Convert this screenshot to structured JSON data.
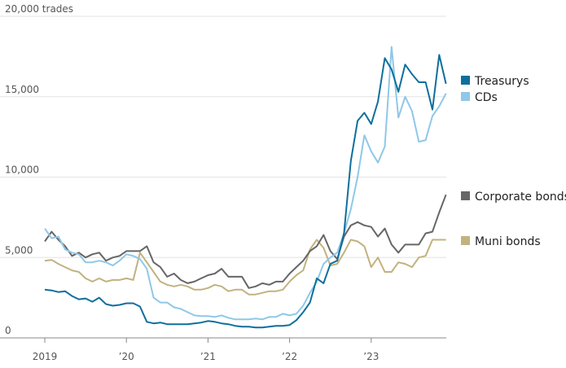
{
  "chart_data": {
    "type": "line",
    "x": [
      "2019-01",
      "2019-02",
      "2019-03",
      "2019-04",
      "2019-05",
      "2019-06",
      "2019-07",
      "2019-08",
      "2019-09",
      "2019-10",
      "2019-11",
      "2019-12",
      "2020-01",
      "2020-02",
      "2020-03",
      "2020-04",
      "2020-05",
      "2020-06",
      "2020-07",
      "2020-08",
      "2020-09",
      "2020-10",
      "2020-11",
      "2020-12",
      "2021-01",
      "2021-02",
      "2021-03",
      "2021-04",
      "2021-05",
      "2021-06",
      "2021-07",
      "2021-08",
      "2021-09",
      "2021-10",
      "2021-11",
      "2021-12",
      "2022-01",
      "2022-02",
      "2022-03",
      "2022-04",
      "2022-05",
      "2022-06",
      "2022-07",
      "2022-08",
      "2022-09",
      "2022-10",
      "2022-11",
      "2022-12",
      "2023-01",
      "2023-02",
      "2023-03",
      "2023-04",
      "2023-05",
      "2023-06",
      "2023-07",
      "2023-08",
      "2023-09",
      "2023-10",
      "2023-11",
      "2023-12"
    ],
    "xticks": [
      {
        "value": "2019-01",
        "label": "2019"
      },
      {
        "value": "2020-01",
        "label": "’20"
      },
      {
        "value": "2021-01",
        "label": "’21"
      },
      {
        "value": "2022-01",
        "label": "’22"
      },
      {
        "value": "2023-01",
        "label": "’23"
      }
    ],
    "ylim": [
      0,
      20000
    ],
    "yticks": [
      0,
      {
        "value": 5000,
        "label": "5,000"
      },
      {
        "value": 10000,
        "label": "10,000"
      },
      {
        "value": 15000,
        "label": "15,000"
      },
      {
        "value": 20000,
        "label": "20,000 trades"
      }
    ],
    "grid": true,
    "legend": "right",
    "series": [
      {
        "name": "Treasurys",
        "color": "#0e6f9c",
        "values": [
          3000,
          2950,
          2850,
          2900,
          2600,
          2400,
          2450,
          2250,
          2500,
          2100,
          2000,
          2050,
          2150,
          2150,
          1950,
          1000,
          900,
          950,
          850,
          850,
          850,
          850,
          900,
          950,
          1050,
          1000,
          900,
          850,
          750,
          700,
          700,
          650,
          650,
          700,
          750,
          750,
          800,
          1100,
          1600,
          2200,
          3700,
          3400,
          4600,
          4800,
          6500,
          11000,
          13500,
          14000,
          13300,
          14700,
          17400,
          16700,
          15300,
          17000,
          16400,
          15900,
          15900,
          14200,
          17600,
          15800
        ]
      },
      {
        "name": "CDs",
        "color": "#8fc8e8",
        "values": [
          6800,
          6200,
          6300,
          5500,
          5300,
          5200,
          4700,
          4700,
          4800,
          4700,
          4500,
          4800,
          5200,
          5100,
          4900,
          4300,
          2500,
          2200,
          2200,
          1900,
          1800,
          1600,
          1400,
          1350,
          1350,
          1300,
          1400,
          1250,
          1150,
          1150,
          1150,
          1200,
          1150,
          1300,
          1300,
          1500,
          1400,
          1500,
          2000,
          2800,
          3500,
          4600,
          5000,
          5300,
          6500,
          8000,
          10000,
          12600,
          11600,
          10900,
          11900,
          18100,
          13700,
          15000,
          14100,
          12200,
          12300,
          13800,
          14400,
          15200
        ]
      },
      {
        "name": "Corporate bonds",
        "color": "#666666",
        "values": [
          6000,
          6600,
          6100,
          5700,
          5100,
          5300,
          5000,
          5200,
          5300,
          4800,
          5000,
          5100,
          5400,
          5400,
          5400,
          5700,
          4700,
          4400,
          3800,
          4000,
          3600,
          3400,
          3500,
          3700,
          3900,
          4000,
          4300,
          3800,
          3800,
          3800,
          3100,
          3200,
          3400,
          3300,
          3500,
          3500,
          4000,
          4400,
          4800,
          5400,
          5700,
          6400,
          5400,
          4900,
          6300,
          7000,
          7200,
          7000,
          6900,
          6300,
          6800,
          5800,
          5300,
          5800,
          5800,
          5800,
          6500,
          6600,
          7800,
          8900
        ]
      },
      {
        "name": "Muni bonds",
        "color": "#c2b27f",
        "values": [
          4800,
          4850,
          4600,
          4400,
          4200,
          4100,
          3700,
          3500,
          3700,
          3500,
          3600,
          3600,
          3700,
          3600,
          5300,
          4700,
          4100,
          3500,
          3300,
          3200,
          3300,
          3200,
          3000,
          3000,
          3100,
          3300,
          3200,
          2900,
          3000,
          3000,
          2700,
          2700,
          2800,
          2900,
          2900,
          3000,
          3500,
          3900,
          4200,
          5500,
          6100,
          5600,
          4500,
          4600,
          5300,
          6100,
          6000,
          5700,
          4400,
          5000,
          4100,
          4100,
          4700,
          4600,
          4400,
          5000,
          5100,
          6100,
          6100,
          6100
        ]
      }
    ]
  }
}
